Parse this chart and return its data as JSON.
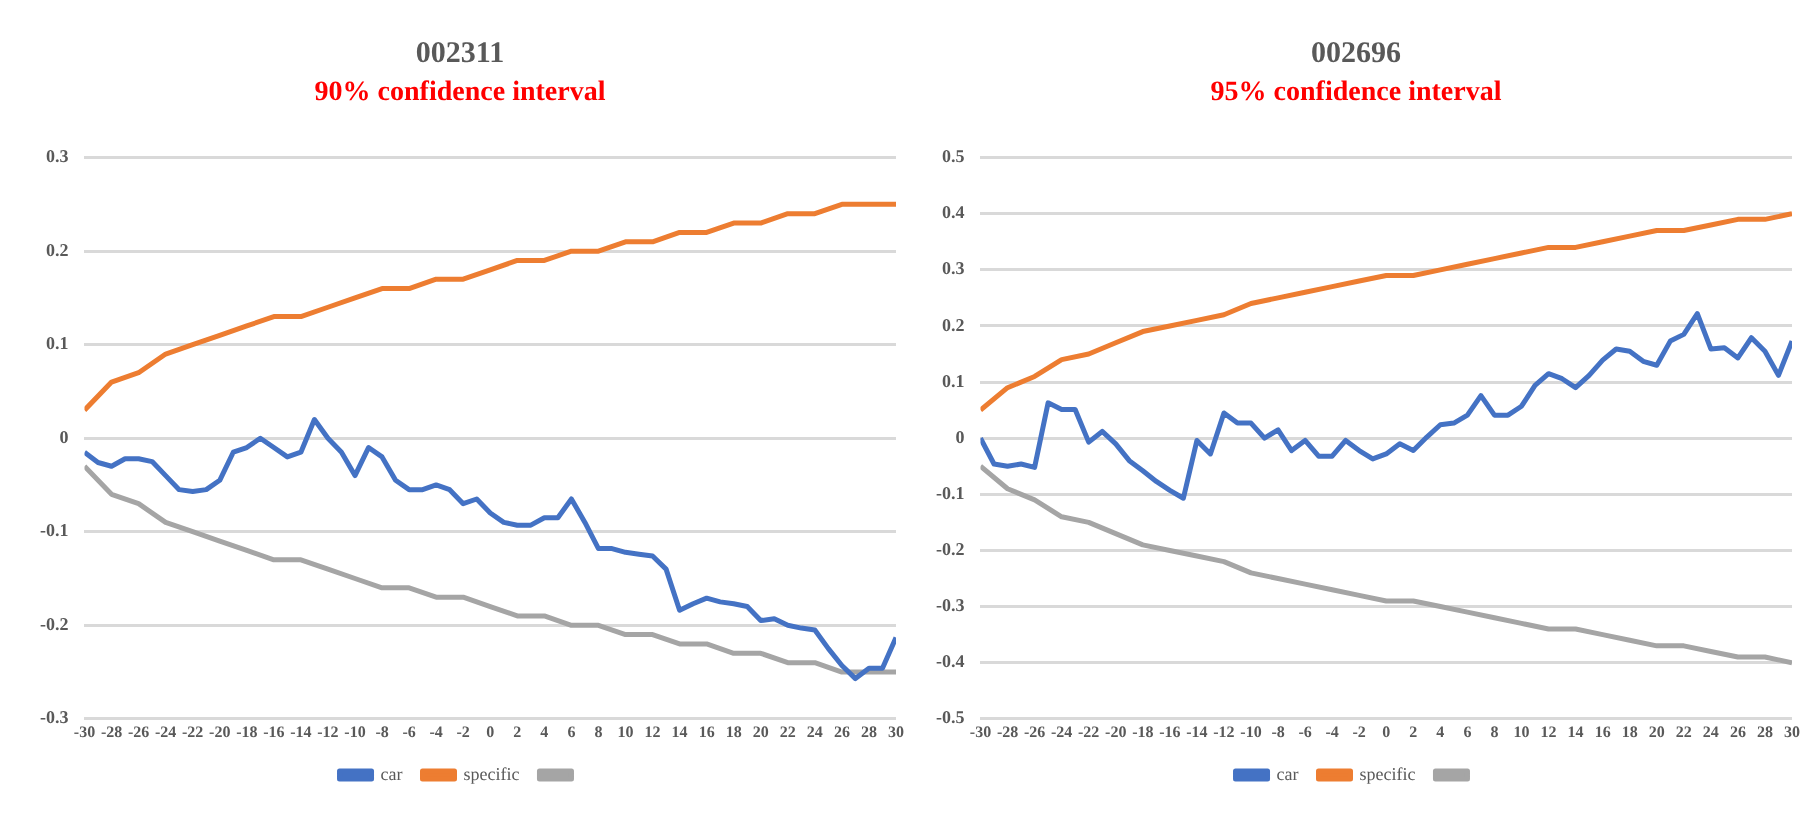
{
  "chart_data": [
    {
      "type": "line",
      "title": "002311",
      "subtitle": "90% confidence interval",
      "x": [
        -30,
        -29,
        -28,
        -27,
        -26,
        -25,
        -24,
        -23,
        -22,
        -21,
        -20,
        -19,
        -18,
        -17,
        -16,
        -15,
        -14,
        -13,
        -12,
        -11,
        -10,
        -9,
        -8,
        -7,
        -6,
        -5,
        -4,
        -3,
        -2,
        -1,
        0,
        1,
        2,
        3,
        4,
        5,
        6,
        7,
        8,
        9,
        10,
        11,
        12,
        13,
        14,
        15,
        16,
        17,
        18,
        19,
        20,
        21,
        22,
        23,
        24,
        25,
        26,
        27,
        28,
        29,
        30
      ],
      "series": [
        {
          "name": "car",
          "color": "#4472c4",
          "values": [
            -0.015,
            -0.026,
            -0.03,
            -0.022,
            -0.022,
            -0.025,
            -0.04,
            -0.055,
            -0.057,
            -0.055,
            -0.045,
            -0.015,
            -0.01,
            0.0,
            -0.01,
            -0.02,
            -0.015,
            0.02,
            0.0,
            -0.015,
            -0.04,
            -0.01,
            -0.02,
            -0.045,
            -0.055,
            -0.055,
            -0.05,
            -0.055,
            -0.07,
            -0.065,
            -0.08,
            -0.09,
            -0.093,
            -0.093,
            -0.085,
            -0.085,
            -0.065,
            -0.09,
            -0.118,
            -0.118,
            -0.122,
            -0.124,
            -0.126,
            -0.14,
            -0.184,
            -0.177,
            -0.171,
            -0.175,
            -0.177,
            -0.18,
            -0.195,
            -0.193,
            -0.2,
            -0.203,
            -0.205,
            -0.225,
            -0.243,
            -0.257,
            -0.246,
            -0.246,
            -0.213
          ]
        },
        {
          "name": "specific",
          "color": "#ed7d31",
          "x": [
            -30,
            -28,
            -26,
            -24,
            -22,
            -20,
            -18,
            -16,
            -14,
            -12,
            -10,
            -8,
            -6,
            -4,
            -2,
            0,
            2,
            4,
            6,
            8,
            10,
            12,
            14,
            16,
            18,
            20,
            22,
            24,
            26,
            28,
            30
          ],
          "values": [
            0.03,
            0.06,
            0.07,
            0.09,
            0.1,
            0.11,
            0.12,
            0.13,
            0.13,
            0.14,
            0.15,
            0.16,
            0.16,
            0.17,
            0.17,
            0.18,
            0.19,
            0.19,
            0.2,
            0.2,
            0.21,
            0.21,
            0.22,
            0.22,
            0.23,
            0.23,
            0.24,
            0.24,
            0.25,
            0.25,
            0.25
          ]
        },
        {
          "color": "#a5a5a5",
          "x": [
            -30,
            -28,
            -26,
            -24,
            -22,
            -20,
            -18,
            -16,
            -14,
            -12,
            -10,
            -8,
            -6,
            -4,
            -2,
            0,
            2,
            4,
            6,
            8,
            10,
            12,
            14,
            16,
            18,
            20,
            22,
            24,
            26,
            28,
            30
          ],
          "values": [
            -0.03,
            -0.06,
            -0.07,
            -0.09,
            -0.1,
            -0.11,
            -0.12,
            -0.13,
            -0.13,
            -0.14,
            -0.15,
            -0.16,
            -0.16,
            -0.17,
            -0.17,
            -0.18,
            -0.19,
            -0.19,
            -0.2,
            -0.2,
            -0.21,
            -0.21,
            -0.22,
            -0.22,
            -0.23,
            -0.23,
            -0.24,
            -0.24,
            -0.25,
            -0.25,
            -0.25
          ]
        }
      ],
      "xlim": [
        -30,
        30
      ],
      "xticks": [
        -30,
        -28,
        -26,
        -24,
        -22,
        -20,
        -18,
        -16,
        -14,
        -12,
        -10,
        -8,
        -6,
        -4,
        -2,
        0,
        2,
        4,
        6,
        8,
        10,
        12,
        14,
        16,
        18,
        20,
        22,
        24,
        26,
        28,
        30
      ],
      "ylim": [
        -0.3,
        0.3
      ],
      "yticks": [
        -0.3,
        -0.2,
        -0.1,
        0,
        0.1,
        0.2,
        0.3
      ],
      "grid": "y",
      "legend": "bottom",
      "marker": "none"
    },
    {
      "type": "line",
      "title": "002696",
      "subtitle": "95% confidence interval",
      "x": [
        -30,
        -29,
        -28,
        -27,
        -26,
        -25,
        -24,
        -23,
        -22,
        -21,
        -20,
        -19,
        -18,
        -17,
        -16,
        -15,
        -14,
        -13,
        -12,
        -11,
        -10,
        -9,
        -8,
        -7,
        -6,
        -5,
        -4,
        -3,
        -2,
        -1,
        0,
        1,
        2,
        3,
        4,
        5,
        6,
        7,
        8,
        9,
        10,
        11,
        12,
        13,
        14,
        15,
        16,
        17,
        18,
        19,
        20,
        21,
        22,
        23,
        24,
        25,
        26,
        27,
        28,
        29,
        30
      ],
      "series": [
        {
          "name": "car",
          "color": "#4472c4",
          "values": [
            0.0,
            -0.046,
            -0.05,
            -0.046,
            -0.052,
            0.063,
            0.051,
            0.051,
            -0.007,
            0.012,
            -0.01,
            -0.04,
            -0.058,
            -0.077,
            -0.093,
            -0.107,
            -0.004,
            -0.028,
            0.045,
            0.027,
            0.027,
            0.0,
            0.015,
            -0.022,
            -0.004,
            -0.032,
            -0.032,
            -0.004,
            -0.022,
            -0.037,
            -0.028,
            -0.01,
            -0.022,
            0.002,
            0.024,
            0.027,
            0.041,
            0.076,
            0.041,
            0.041,
            0.057,
            0.094,
            0.115,
            0.106,
            0.09,
            0.112,
            0.139,
            0.159,
            0.155,
            0.137,
            0.13,
            0.173,
            0.185,
            0.222,
            0.159,
            0.161,
            0.143,
            0.179,
            0.155,
            0.112,
            0.173
          ]
        },
        {
          "name": "specific",
          "color": "#ed7d31",
          "x": [
            -30,
            -28,
            -26,
            -24,
            -22,
            -20,
            -18,
            -16,
            -14,
            -12,
            -10,
            -8,
            -6,
            -4,
            -2,
            0,
            2,
            4,
            6,
            8,
            10,
            12,
            14,
            16,
            18,
            20,
            22,
            24,
            26,
            28,
            30
          ],
          "values": [
            0.05,
            0.09,
            0.11,
            0.14,
            0.15,
            0.17,
            0.19,
            0.2,
            0.21,
            0.22,
            0.24,
            0.25,
            0.26,
            0.27,
            0.28,
            0.29,
            0.29,
            0.3,
            0.31,
            0.32,
            0.33,
            0.34,
            0.34,
            0.35,
            0.36,
            0.37,
            0.37,
            0.38,
            0.39,
            0.39,
            0.4
          ]
        },
        {
          "color": "#a5a5a5",
          "x": [
            -30,
            -28,
            -26,
            -24,
            -22,
            -20,
            -18,
            -16,
            -14,
            -12,
            -10,
            -8,
            -6,
            -4,
            -2,
            0,
            2,
            4,
            6,
            8,
            10,
            12,
            14,
            16,
            18,
            20,
            22,
            24,
            26,
            28,
            30
          ],
          "values": [
            -0.05,
            -0.09,
            -0.11,
            -0.14,
            -0.15,
            -0.17,
            -0.19,
            -0.2,
            -0.21,
            -0.22,
            -0.24,
            -0.25,
            -0.26,
            -0.27,
            -0.28,
            -0.29,
            -0.29,
            -0.3,
            -0.31,
            -0.32,
            -0.33,
            -0.34,
            -0.34,
            -0.35,
            -0.36,
            -0.37,
            -0.37,
            -0.38,
            -0.39,
            -0.39,
            -0.4
          ]
        }
      ],
      "xlim": [
        -30,
        30
      ],
      "xticks": [
        -30,
        -28,
        -26,
        -24,
        -22,
        -20,
        -18,
        -16,
        -14,
        -12,
        -10,
        -8,
        -6,
        -4,
        -2,
        0,
        2,
        4,
        6,
        8,
        10,
        12,
        14,
        16,
        18,
        20,
        22,
        24,
        26,
        28,
        30
      ],
      "ylim": [
        -0.5,
        0.5
      ],
      "yticks": [
        -0.5,
        -0.4,
        -0.3,
        -0.2,
        -0.1,
        0,
        0.1,
        0.2,
        0.3,
        0.4,
        0.5
      ],
      "grid": "y",
      "legend": "bottom",
      "marker": "none"
    }
  ]
}
